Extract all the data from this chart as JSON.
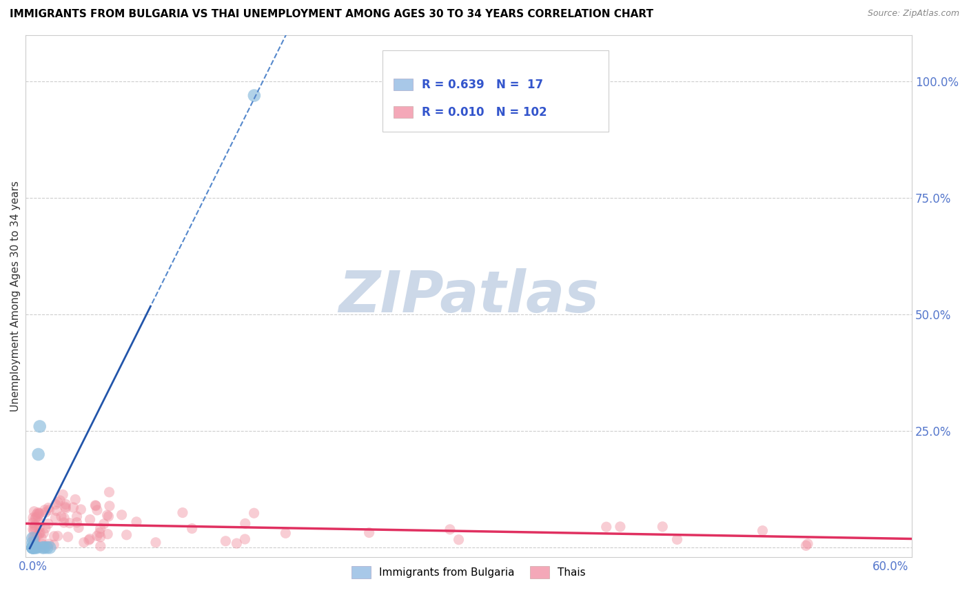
{
  "title": "IMMIGRANTS FROM BULGARIA VS THAI UNEMPLOYMENT AMONG AGES 30 TO 34 YEARS CORRELATION CHART",
  "source": "Source: ZipAtlas.com",
  "ylabel": "Unemployment Among Ages 30 to 34 years",
  "xlim": [
    -0.005,
    0.615
  ],
  "ylim": [
    -0.02,
    1.1
  ],
  "yticks": [
    0.0,
    0.25,
    0.5,
    0.75,
    1.0
  ],
  "ytick_labels": [
    "",
    "25.0%",
    "50.0%",
    "75.0%",
    "100.0%"
  ],
  "xtick_left": "0.0%",
  "xtick_right": "60.0%",
  "legend_r1": "R = 0.639   N =  17",
  "legend_r2": "R = 0.010   N = 102",
  "legend_color_blue": "#a8c8e8",
  "legend_color_pink": "#f4a8b8",
  "legend_text_color": "#3355cc",
  "bg_color": "#ffffff",
  "grid_color": "#cccccc",
  "grid_linestyle": "--",
  "bulgaria_color": "#88bbdd",
  "bulgaria_alpha": 0.65,
  "bulgaria_size": 180,
  "thai_color": "#f090a0",
  "thai_alpha": 0.45,
  "thai_size": 120,
  "trendline_bg_color": "#5588cc",
  "trendline_bg_solid_color": "#2255aa",
  "trendline_thai_color": "#e03060",
  "watermark_text": "ZIPatlas",
  "watermark_color": "#ccd8e8",
  "watermark_fontsize": 60,
  "tick_color": "#5577cc",
  "tick_fontsize": 12,
  "ylabel_fontsize": 11,
  "title_fontsize": 11,
  "source_fontsize": 9
}
